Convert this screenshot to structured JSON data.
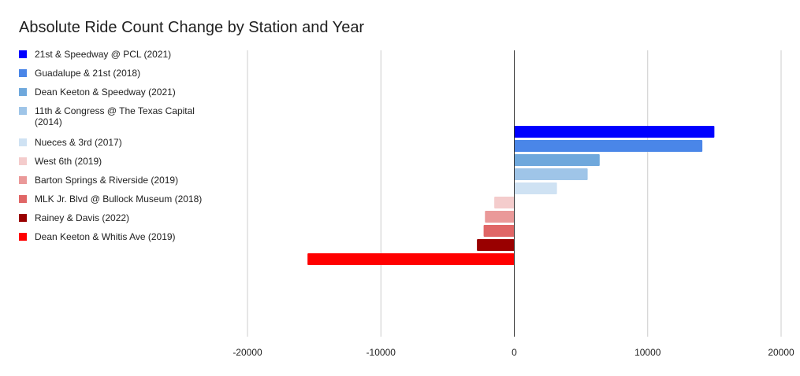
{
  "chart_data": {
    "type": "bar",
    "orientation": "horizontal",
    "title": "Absolute Ride Count Change by Station and Year",
    "xlabel": "",
    "ylabel": "",
    "xlim": [
      -20000,
      20000
    ],
    "xticks": [
      -20000,
      -10000,
      0,
      10000,
      20000
    ],
    "grid": true,
    "legend_position": "left",
    "bars": [
      {
        "label": "21st & Speedway @ PCL (2021)",
        "value": 15000,
        "color": "#0000ff"
      },
      {
        "label": "Guadalupe & 21st (2018)",
        "value": 14100,
        "color": "#4a86e8"
      },
      {
        "label": "Dean Keeton & Speedway (2021)",
        "value": 6400,
        "color": "#6fa8dc"
      },
      {
        "label": "11th & Congress @ The Texas Capital (2014)",
        "value": 5500,
        "color": "#9fc5e8"
      },
      {
        "label": "Nueces & 3rd (2017)",
        "value": 3200,
        "color": "#cfe2f3"
      },
      {
        "label": "West 6th (2019)",
        "value": -1500,
        "color": "#f4cccc"
      },
      {
        "label": "Barton Springs & Riverside (2019)",
        "value": -2200,
        "color": "#ea9999"
      },
      {
        "label": "MLK Jr. Blvd @ Bullock Museum (2018)",
        "value": -2300,
        "color": "#e06666"
      },
      {
        "label": "Rainey & Davis (2022)",
        "value": -2800,
        "color": "#990000"
      },
      {
        "label": "Dean Keeton & Whitis Ave (2019)",
        "value": -15500,
        "color": "#ff0000"
      }
    ]
  }
}
